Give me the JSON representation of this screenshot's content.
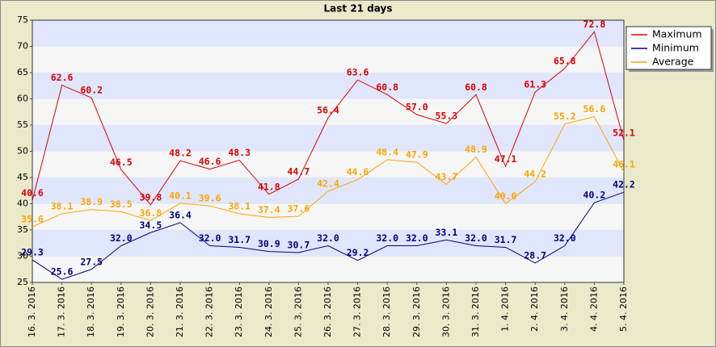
{
  "chart_data": {
    "type": "line",
    "title": "Last 21 days",
    "categories": [
      "16. 3. 2016",
      "17. 3. 2016",
      "18. 3. 2016",
      "19. 3. 2016",
      "20. 3. 2016",
      "21. 3. 2016",
      "22. 3. 2016",
      "23. 3. 2016",
      "24. 3. 2016",
      "25. 3. 2016",
      "26. 3. 2016",
      "27. 3. 2016",
      "28. 3. 2016",
      "29. 3. 2016",
      "30. 3. 2016",
      "31. 3. 2016",
      "1. 4. 2016",
      "2. 4. 2016",
      "3. 4. 2016",
      "4. 4. 2016",
      "5. 4. 2016"
    ],
    "series": [
      {
        "name": "Maximum",
        "color": "#e00000",
        "values": [
          40.6,
          62.6,
          60.2,
          46.5,
          39.8,
          48.2,
          46.6,
          48.3,
          41.8,
          44.7,
          56.4,
          63.6,
          60.8,
          57.0,
          55.3,
          60.8,
          47.1,
          61.3,
          65.8,
          72.8,
          52.1
        ],
        "value_labels": [
          "40.6",
          "62.6",
          "60.2",
          "46.5",
          "39.8",
          "48.2",
          "46.6",
          "48.3",
          "41.8",
          "44.7",
          "56.4",
          "63.6",
          "60.8",
          "57.0",
          "55.3",
          "60.8",
          "47.1",
          "61.3",
          "65.8",
          "72.8",
          "52.1"
        ]
      },
      {
        "name": "Minimum",
        "color": "#000080",
        "values": [
          29.3,
          25.6,
          27.5,
          32.0,
          34.5,
          36.4,
          32.0,
          31.7,
          30.9,
          30.7,
          32.0,
          29.2,
          32.0,
          32.0,
          33.1,
          32.0,
          31.7,
          28.7,
          32.0,
          40.2,
          42.2
        ],
        "value_labels": [
          "29.3",
          "25.6",
          "27.5",
          "32.0",
          "34.5",
          "36.4",
          "32.0",
          "31.7",
          "30.9",
          "30.7",
          "32.0",
          "29.2",
          "32.0",
          "32.0",
          "33.1",
          "32.0",
          "31.7",
          "28.7",
          "32.0",
          "40.2",
          "42.2"
        ]
      },
      {
        "name": "Average",
        "color": "#ffa500",
        "values": [
          35.6,
          38.1,
          38.9,
          38.5,
          36.8,
          40.1,
          39.6,
          38.1,
          37.4,
          37.6,
          42.4,
          44.6,
          48.4,
          47.9,
          43.7,
          48.9,
          40.0,
          44.2,
          55.2,
          56.6,
          46.1
        ],
        "value_labels": [
          "35.6",
          "38.1",
          "38.9",
          "38.5",
          "36.8",
          "40.1",
          "39.6",
          "38.1",
          "37.4",
          "37.6",
          "42.4",
          "44.6",
          "48.4",
          "47.9",
          "43.7",
          "48.9",
          "40.0",
          "44.2",
          "55.2",
          "56.6",
          "46.1"
        ]
      }
    ],
    "ylim": [
      25,
      75
    ],
    "yticks": [
      25,
      30,
      35,
      40,
      45,
      50,
      55,
      60,
      65,
      70,
      75
    ],
    "grid": true,
    "legend": "top-right"
  }
}
